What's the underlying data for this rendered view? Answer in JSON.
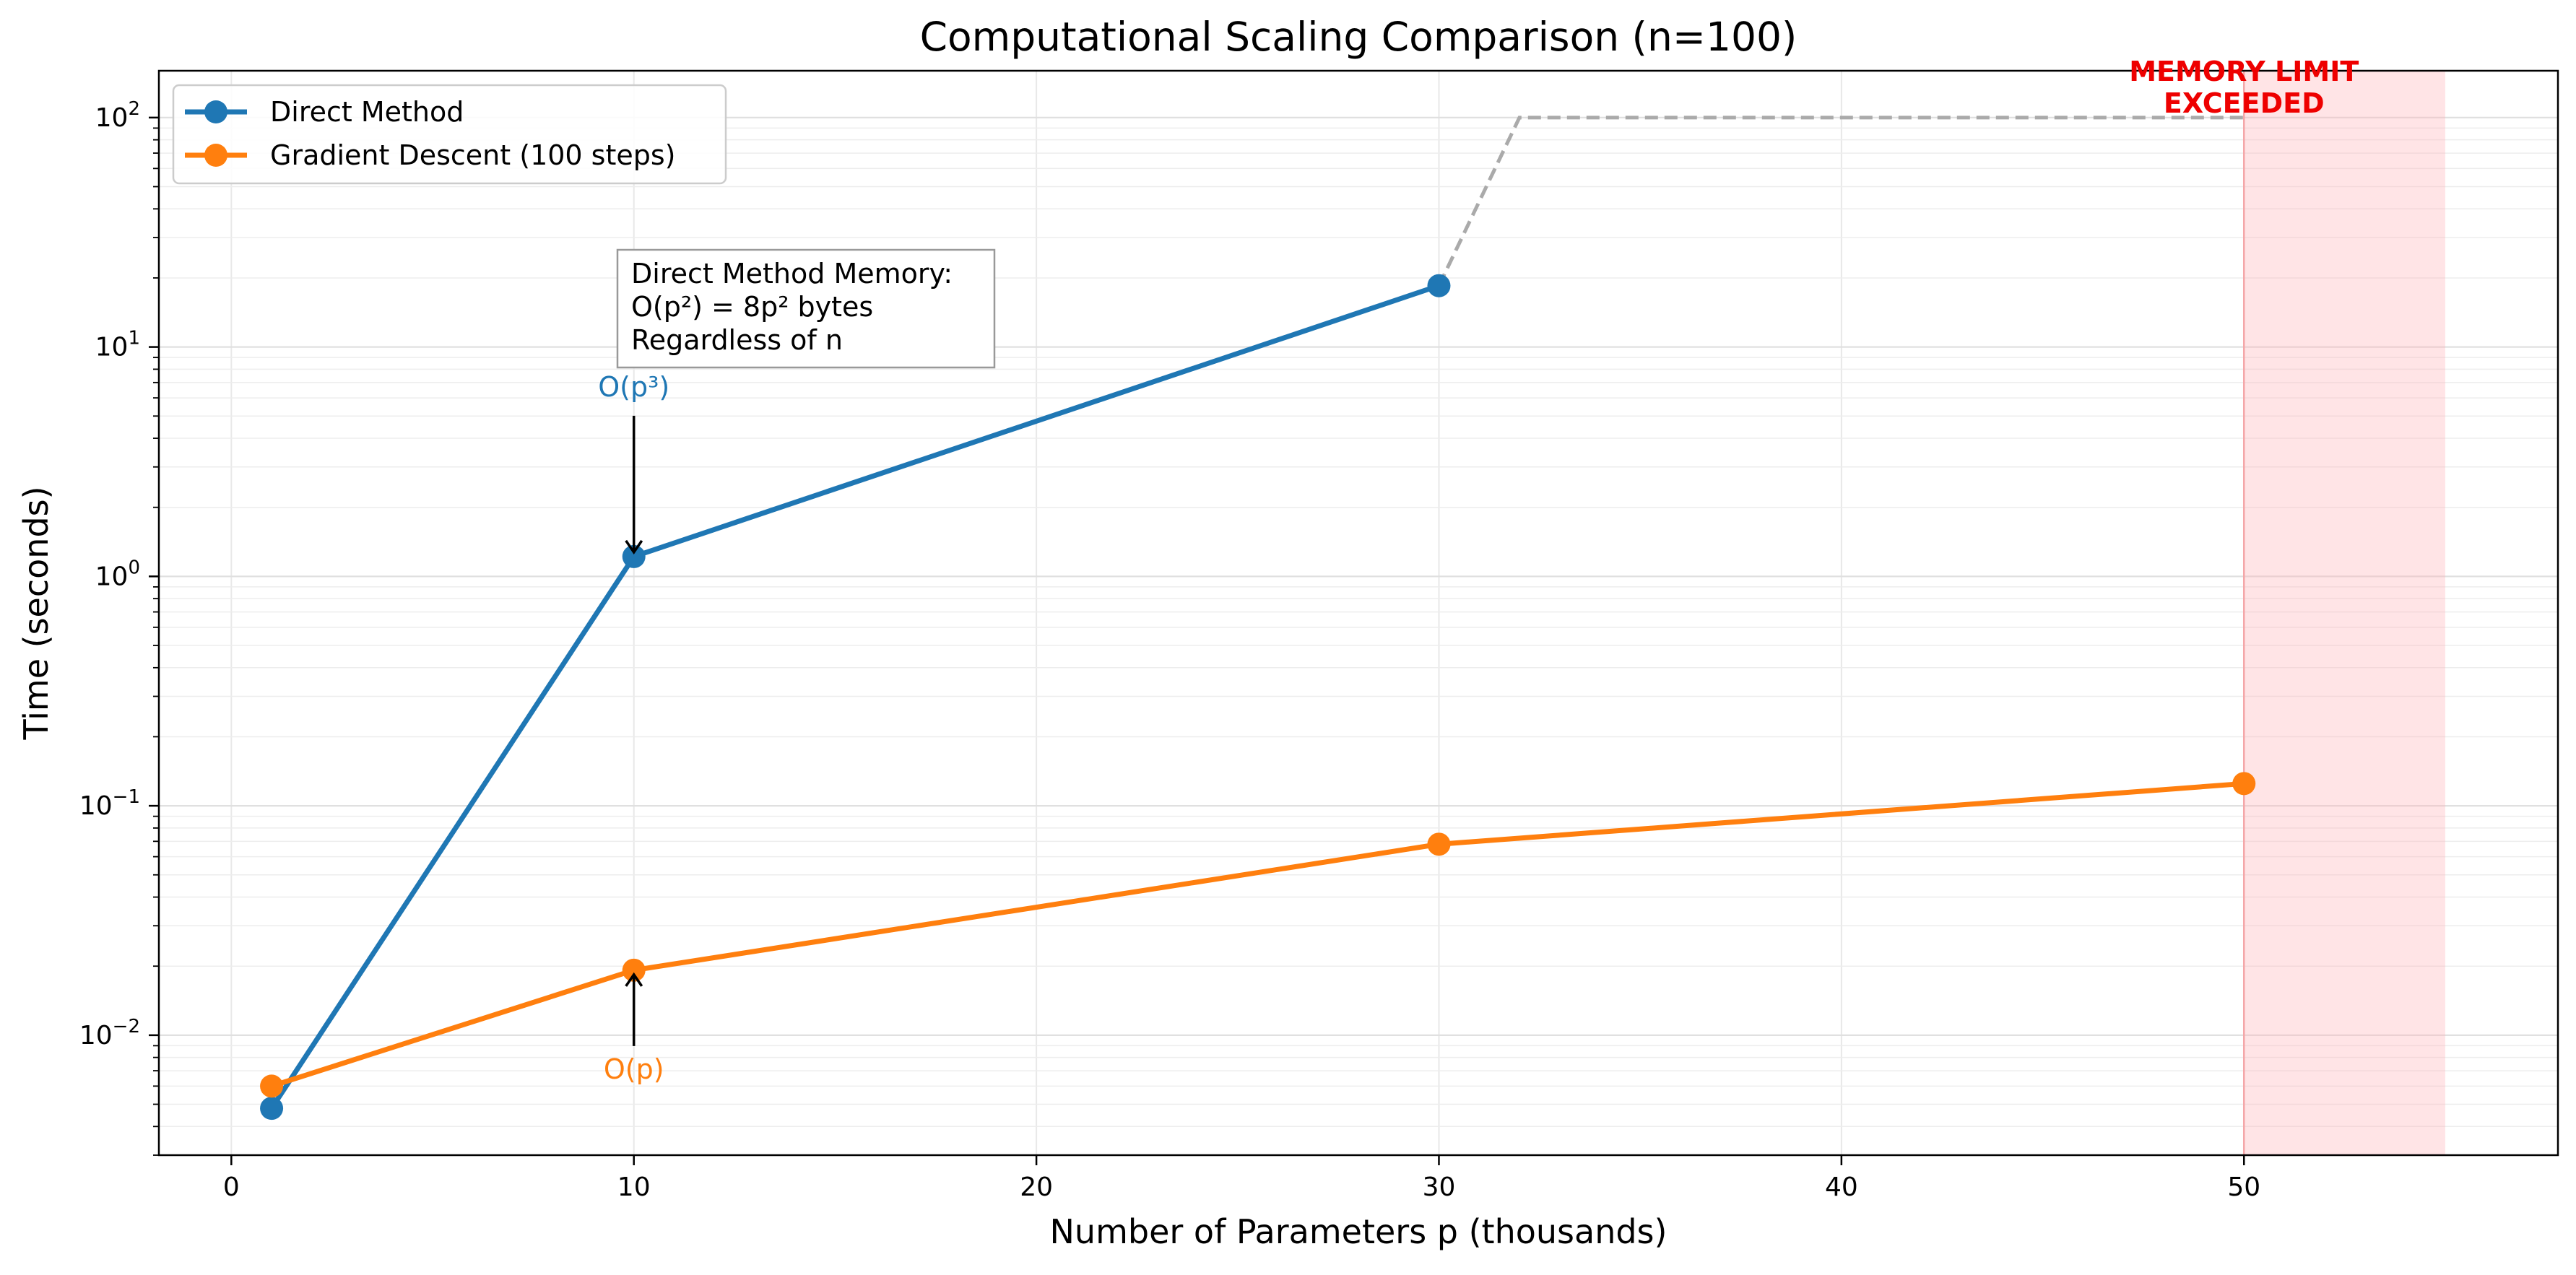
{
  "chart_data": {
    "type": "line",
    "title": "Computational Scaling Comparison (n=100)",
    "xlabel": "Number of Parameters p (thousands)",
    "ylabel": "Time (seconds)",
    "xlim": [
      -1.8,
      57.8
    ],
    "ylim": [
      0.003,
      160
    ],
    "yscale": "log",
    "grid": true,
    "legend_position": "top-left",
    "x_ticks": [
      0,
      10,
      20,
      30,
      40,
      50
    ],
    "y_ticks": [
      {
        "value": 0.01,
        "base": "10",
        "exp": "−2"
      },
      {
        "value": 0.1,
        "base": "10",
        "exp": "−1"
      },
      {
        "value": 1,
        "base": "10",
        "exp": "0"
      },
      {
        "value": 10,
        "base": "10",
        "exp": "1"
      },
      {
        "value": 100,
        "base": "10",
        "exp": "2"
      }
    ],
    "series": [
      {
        "name": "Direct Method",
        "color": "#1f77b4",
        "x": [
          1,
          10,
          30
        ],
        "y": [
          0.0048,
          1.22,
          18.5
        ]
      },
      {
        "name": "Gradient Descent (100 steps)",
        "color": "#ff7f0e",
        "x": [
          1,
          10,
          30,
          50
        ],
        "y": [
          0.006,
          0.0192,
          0.068,
          0.125
        ]
      }
    ],
    "memory_line": {
      "color": "#aaaaaa",
      "x": [
        30,
        32,
        50
      ],
      "y": [
        18.5,
        100,
        100
      ]
    },
    "memory_region": {
      "x_start": 50,
      "x_end": 55,
      "color": "#ffb3b8",
      "label_line1": "MEMORY LIMIT",
      "label_line2": "EXCEEDED",
      "label_color": "#ee0000"
    },
    "annotations": {
      "direct_box": {
        "line1": "Direct Method Memory:",
        "line2": "O(p²) = 8p² bytes",
        "line3": "Regardless of n"
      },
      "direct_arrow": {
        "text": "O(p³)",
        "color": "#1f77b4",
        "x": 10,
        "y": 1.22
      },
      "gd_arrow": {
        "text": "O(p)",
        "color": "#ff7f0e",
        "x": 10,
        "y": 0.0192
      }
    }
  }
}
